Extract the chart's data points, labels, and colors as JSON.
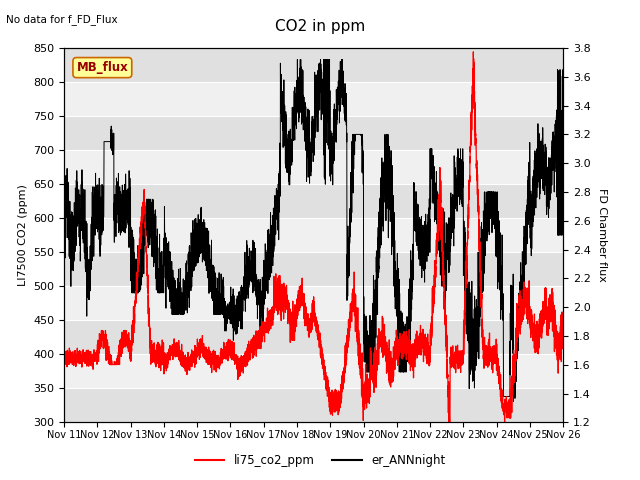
{
  "title": "CO2 in ppm",
  "ylabel_left": "LI7500 CO2 (ppm)",
  "ylabel_right": "FD Chamber flux",
  "ylim_left": [
    300,
    850
  ],
  "ylim_right": [
    1.2,
    3.8
  ],
  "note_text": "No data for f_FD_Flux",
  "legend_label1": "li75_co2_ppm",
  "legend_label2": "er_ANNnight",
  "mb_flux_label": "MB_flux",
  "background_color": "#ffffff",
  "plot_bg_color": "#f0f0f0",
  "line1_color": "#ff0000",
  "line2_color": "#000000",
  "mb_box_facecolor": "#ffff99",
  "mb_box_edgecolor": "#800000",
  "xticklabels": [
    "Nov 11",
    "Nov 12",
    "Nov 13",
    "Nov 14",
    "Nov 15",
    "Nov 16",
    "Nov 17",
    "Nov 18",
    "Nov 19",
    "Nov 20",
    "Nov 21",
    "Nov 22",
    "Nov 23",
    "Nov 24",
    "Nov 25",
    "Nov 26"
  ],
  "yticks_left": [
    300,
    350,
    400,
    450,
    500,
    550,
    600,
    650,
    700,
    750,
    800,
    850
  ],
  "yticks_right": [
    1.2,
    1.4,
    1.6,
    1.8,
    2.0,
    2.2,
    2.4,
    2.6,
    2.8,
    3.0,
    3.2,
    3.4,
    3.6,
    3.8
  ]
}
